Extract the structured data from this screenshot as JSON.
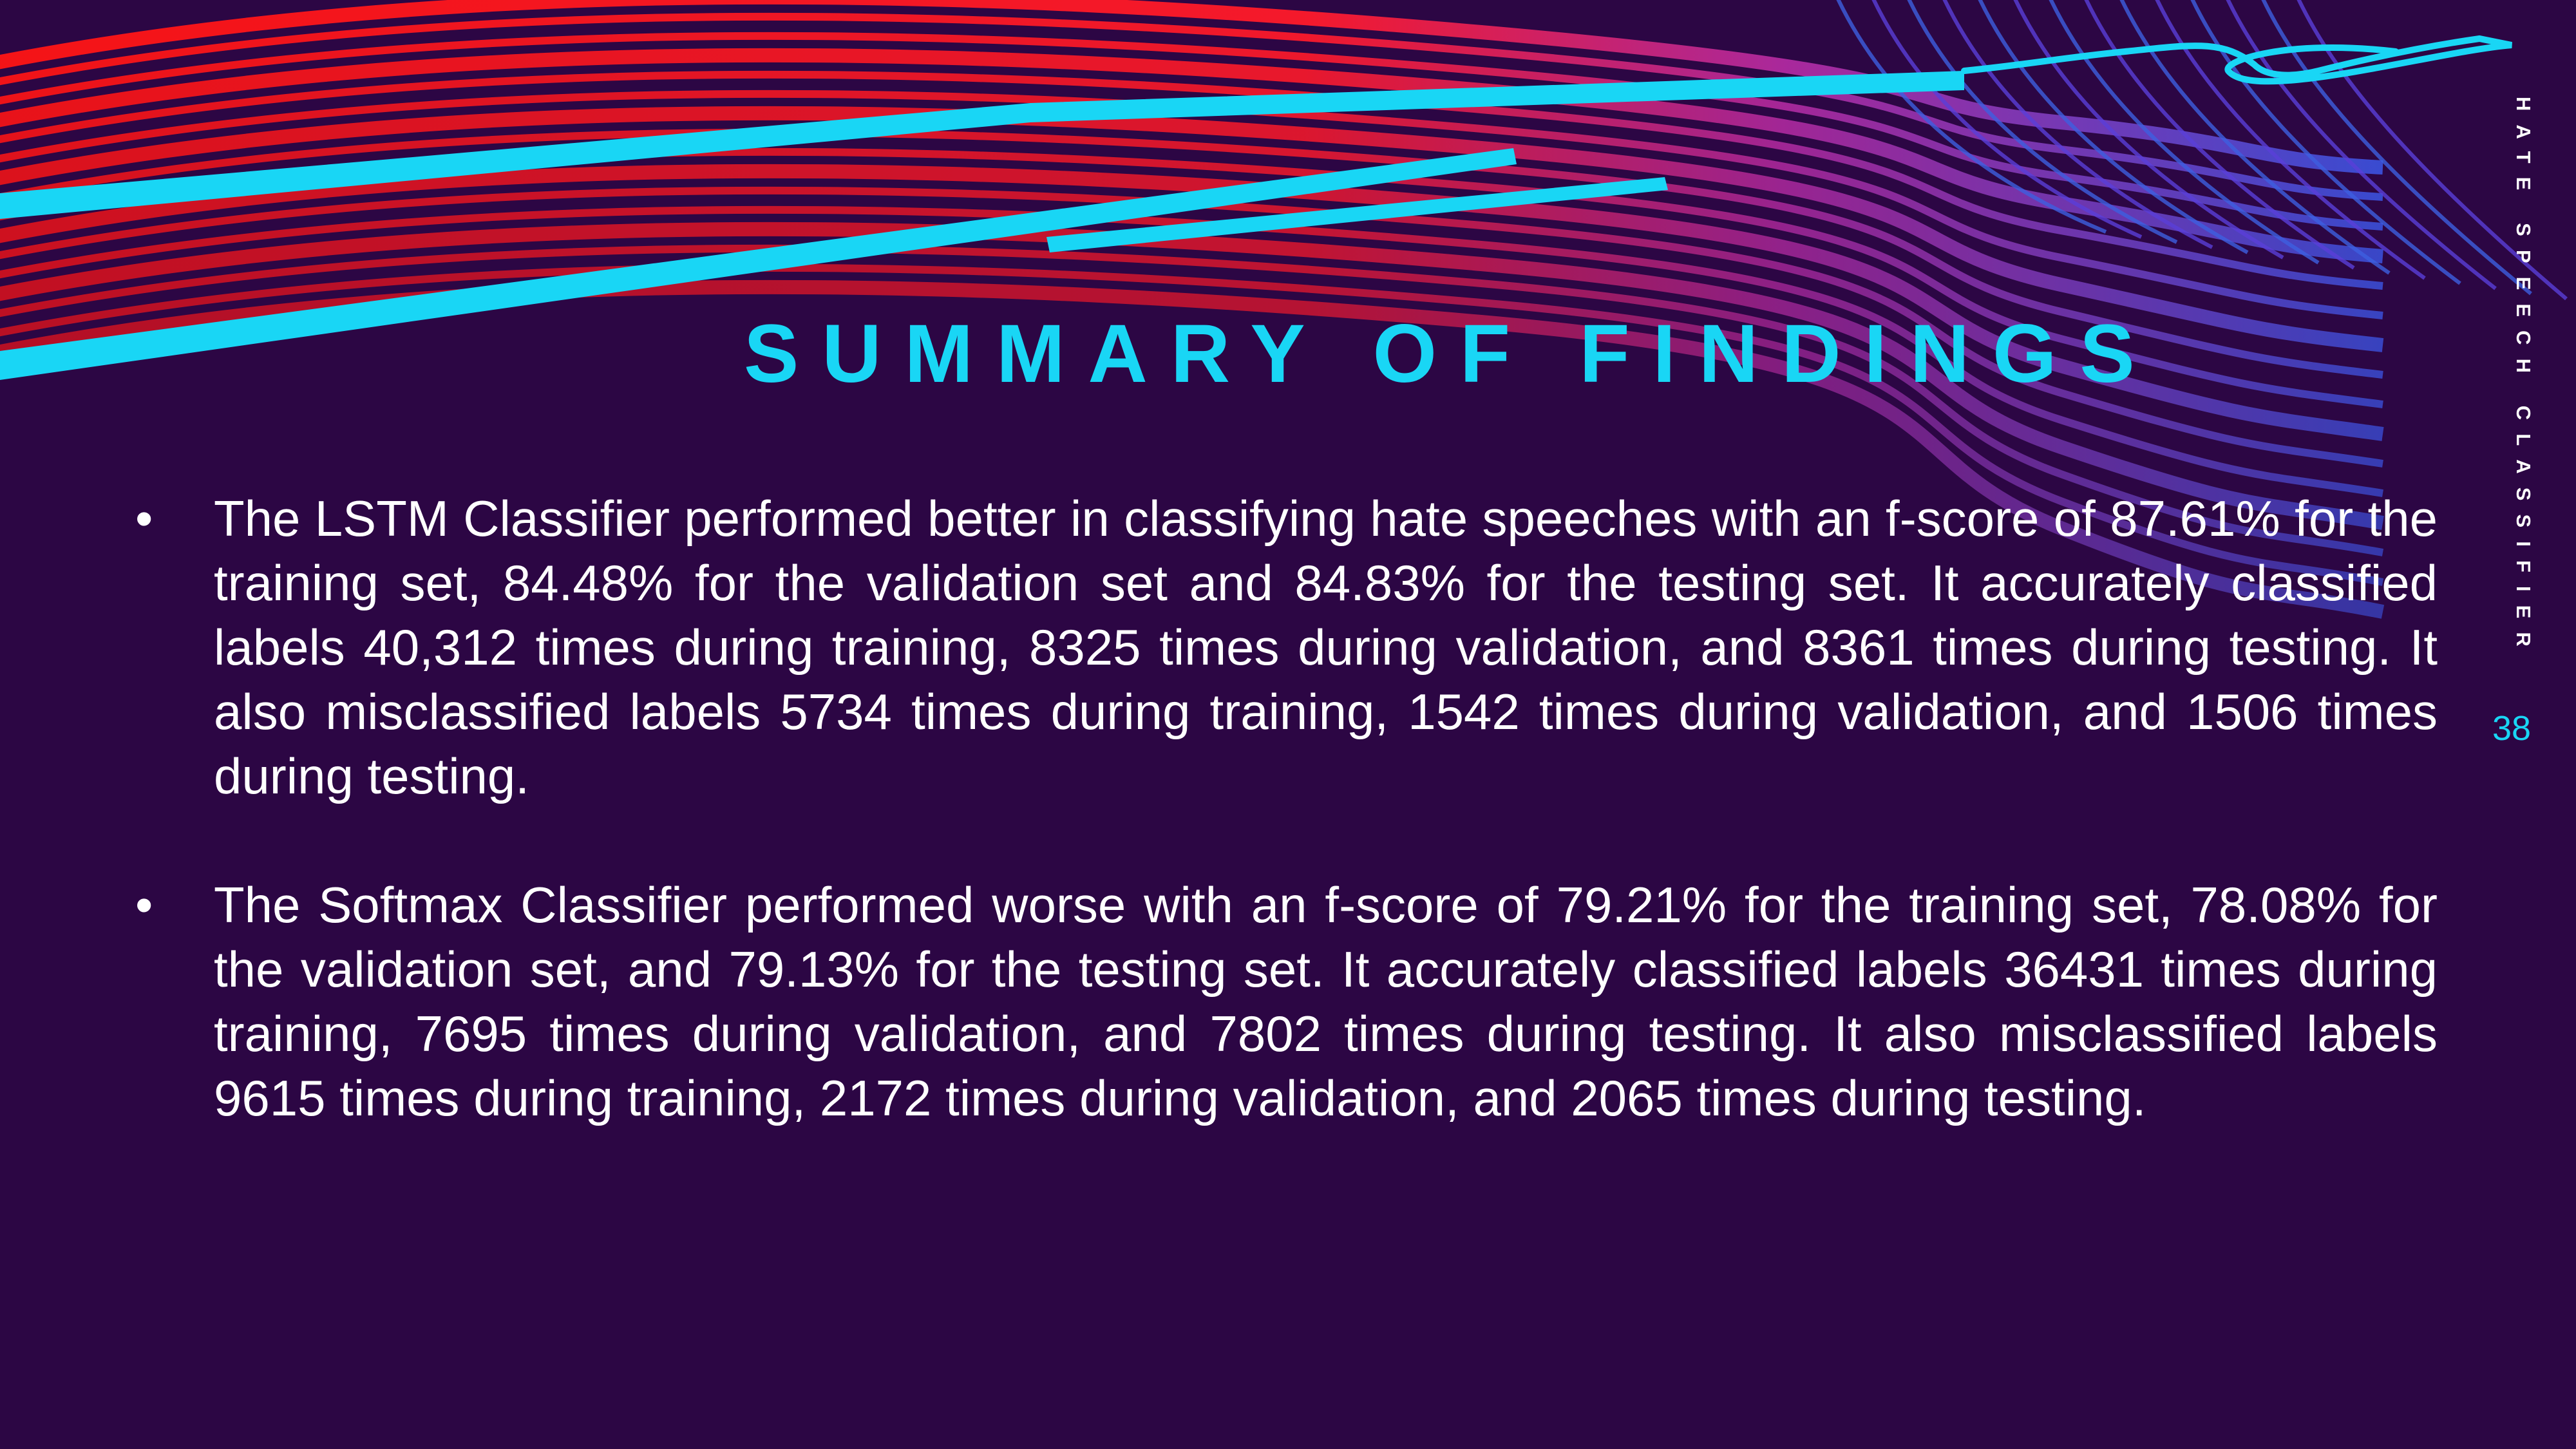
{
  "slide": {
    "title": "SUMMARY OF FINDINGS",
    "side_label": "HATE SPEECH CLASSIFIER",
    "page_number": "38",
    "bullet_glyph": "•",
    "bullets": [
      {
        "text": "The LSTM Classifier performed better in classifying hate speeches with an f-score of 87.61% for the training set, 84.48% for the validation set and 84.83% for the testing set. It accurately classified labels 40,312 times during training, 8325 times during validation, and 8361 times during testing. It also misclassified labels 5734 times during training, 1542 times during validation, and 1506 times during testing."
      },
      {
        "text": "The Softmax Classifier performed worse with an f-score of 79.21% for the training set, 78.08% for the validation set, and 79.13% for the testing set. It accurately classified labels 36431 times during training, 7695 times during validation, and 7802 times during testing. It also misclassified labels 9615 times during training, 2172 times during validation, and 2065 times during testing."
      }
    ]
  },
  "colors": {
    "background": "#2c0644",
    "accent_cyan": "#19d6f5",
    "accent_red": "#ff1a1a",
    "text": "#ffffff"
  }
}
